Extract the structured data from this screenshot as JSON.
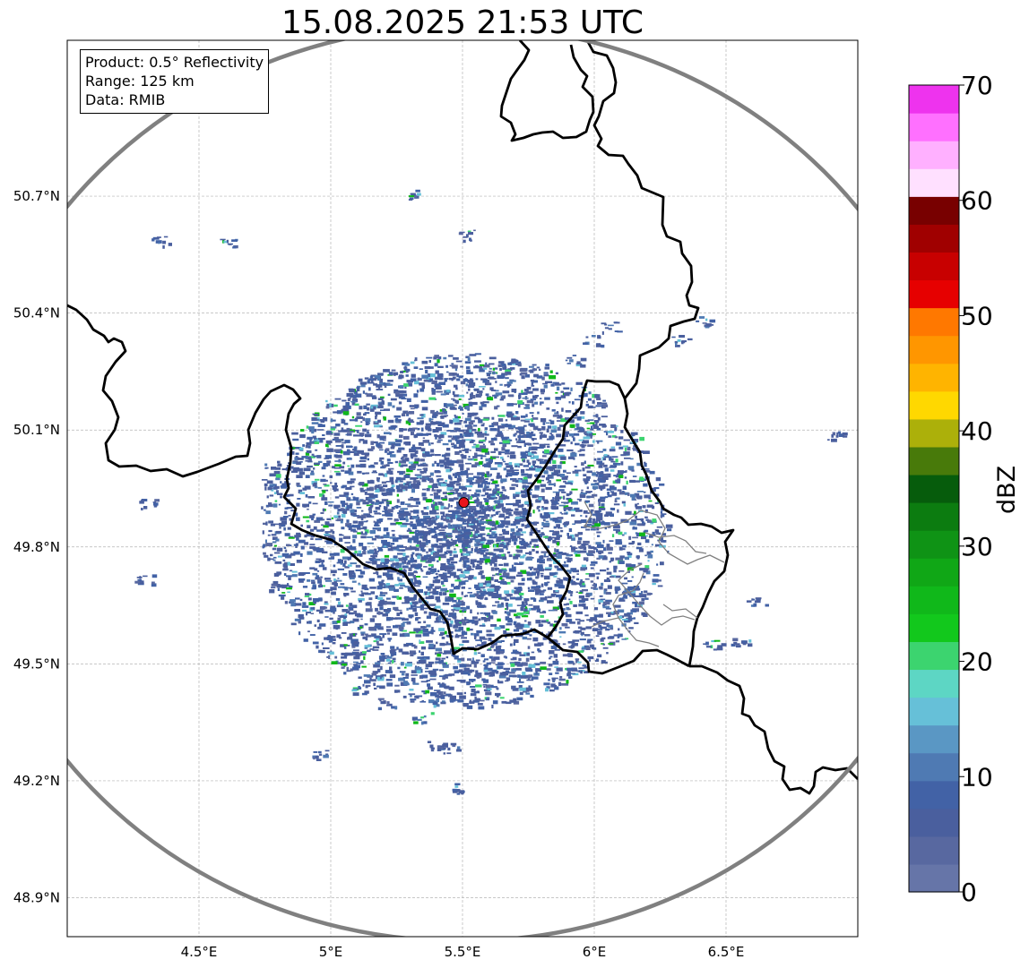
{
  "title": "15.08.2025 21:53 UTC",
  "info": {
    "product": "Product: 0.5° Reflectivity",
    "range": "Range: 125 km",
    "data": "Data: RMIB"
  },
  "map": {
    "extent": {
      "lon": [
        4.0,
        7.0
      ],
      "lat": [
        48.8,
        51.1
      ]
    },
    "lon_ticks": [
      {
        "v": 4.5,
        "label": "4.5°E"
      },
      {
        "v": 5.0,
        "label": "5°E"
      },
      {
        "v": 5.5,
        "label": "5.5°E"
      },
      {
        "v": 6.0,
        "label": "6°E"
      },
      {
        "v": 6.5,
        "label": "6.5°E"
      }
    ],
    "lat_ticks": [
      {
        "v": 48.9,
        "label": "48.9°N"
      },
      {
        "v": 49.2,
        "label": "49.2°N"
      },
      {
        "v": 49.5,
        "label": "49.5°N"
      },
      {
        "v": 49.8,
        "label": "49.8°N"
      },
      {
        "v": 50.1,
        "label": "50.1°N"
      },
      {
        "v": 50.4,
        "label": "50.4°N"
      },
      {
        "v": 50.7,
        "label": "50.7°N"
      }
    ],
    "radar_site": {
      "lon": 5.505,
      "lat": 49.914,
      "color": "#e8141c"
    },
    "range_ring_color": "#808080",
    "border_color": "#000000",
    "region_border_color": "#808080"
  },
  "colorbar": {
    "label": "dBZ",
    "min": 0,
    "max": 70,
    "ticks": [
      {
        "v": 0,
        "label": "0"
      },
      {
        "v": 10,
        "label": "10"
      },
      {
        "v": 20,
        "label": "20"
      },
      {
        "v": 30,
        "label": "30"
      },
      {
        "v": 40,
        "label": "40"
      },
      {
        "v": 50,
        "label": "50"
      },
      {
        "v": 60,
        "label": "60"
      },
      {
        "v": 70,
        "label": "70"
      }
    ],
    "colors": [
      "#6675a8",
      "#5868a0",
      "#4a5f9e",
      "#4262a6",
      "#4f7ab3",
      "#5a97c4",
      "#66c0d8",
      "#5dd6c4",
      "#3cd46f",
      "#12c81c",
      "#10b81a",
      "#10a716",
      "#0f9315",
      "#0c7c10",
      "#065c0c",
      "#487a0a",
      "#acb00a",
      "#ffd800",
      "#ffb400",
      "#ff9600",
      "#ff7800",
      "#e60000",
      "#c80000",
      "#a00000",
      "#780000",
      "#ffe0ff",
      "#ffb0ff",
      "#ff70ff",
      "#ee33ee"
    ]
  }
}
